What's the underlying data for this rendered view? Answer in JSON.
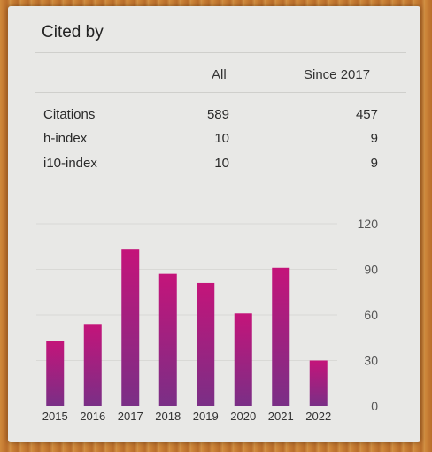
{
  "header": {
    "title": "Cited by"
  },
  "table": {
    "columns": [
      "All",
      "Since 2017"
    ],
    "rows": [
      {
        "label": "Citations",
        "all": "589",
        "since": "457"
      },
      {
        "label": "h-index",
        "all": "10",
        "since": "9"
      },
      {
        "label": "i10-index",
        "all": "10",
        "since": "9"
      }
    ]
  },
  "colors": {
    "bar_top": "#c4147a",
    "bar_bottom": "#7a2f86",
    "card_bg": "#e8e8e6",
    "frame": "#c9833a"
  },
  "chart_data": {
    "type": "bar",
    "categories": [
      "2015",
      "2016",
      "2017",
      "2018",
      "2019",
      "2020",
      "2021",
      "2022"
    ],
    "values": [
      43,
      54,
      103,
      87,
      81,
      61,
      91,
      30
    ],
    "yticks": [
      0,
      30,
      60,
      90,
      120
    ],
    "ylim": [
      0,
      120
    ],
    "grid": true,
    "axis_side": "right"
  }
}
